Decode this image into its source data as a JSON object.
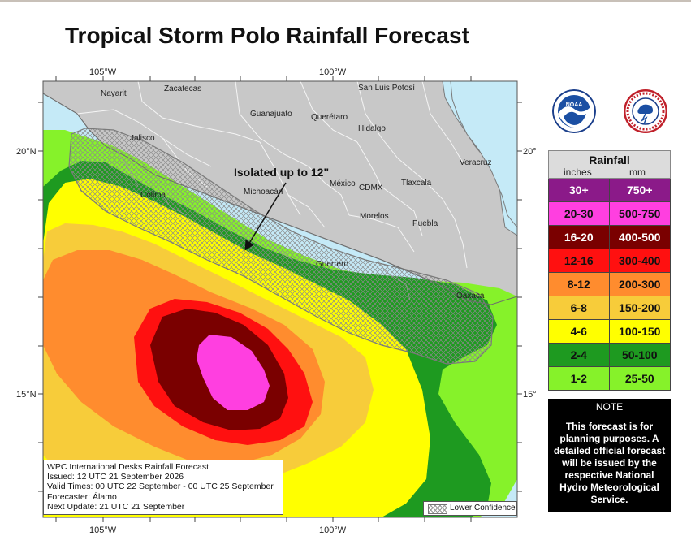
{
  "title": "Tropical Storm Polo Rainfall Forecast",
  "axis": {
    "top": [
      "105°W",
      "100°W"
    ],
    "bottom": [
      "105°W",
      "100°W"
    ],
    "left": [
      "20°N",
      "15°N"
    ],
    "right": [
      "20°N",
      "15°N"
    ]
  },
  "places": {
    "nayarit": "Nayarit",
    "zacatecas": "Zacatecas",
    "san_luis_potosi": "San Luis Potosí",
    "guanajuato": "Guanajuato",
    "queretaro": "Querétaro",
    "hidalgo": "Hidalgo",
    "jalisco": "Jalisco",
    "veracruz": "Veracruz",
    "colima": "Colima",
    "michoacan": "Michoacán",
    "mexico": "México",
    "cdmx": "CDMX",
    "tlaxcala": "Tlaxcala",
    "morelos": "Morelos",
    "puebla": "Puebla",
    "guerrero": "Guerrero",
    "oaxaca": "Oaxaca"
  },
  "annotation": "Isolated up to 12\"",
  "info": {
    "line1": "WPC International Desks Rainfall Forecast",
    "line2": "Issued: 12 UTC 21 September 2026",
    "line3": "Valid Times: 00 UTC 22 September - 00 UTC 25 September",
    "line4": "Forecaster: Álamo",
    "line5": "Next Update: 21 UTC 21 September"
  },
  "lower_confidence": "Lower Confidence",
  "legend": {
    "title": "Rainfall",
    "inches_label": "inches",
    "mm_label": "mm",
    "rows": [
      {
        "inches": "30+",
        "mm": "750+",
        "color": "#8b1a89",
        "text_color": "#ffffff"
      },
      {
        "inches": "20-30",
        "mm": "500-750",
        "color": "#ff3fe0",
        "text_color": "#111111"
      },
      {
        "inches": "16-20",
        "mm": "400-500",
        "color": "#7a0000",
        "text_color": "#ffffff"
      },
      {
        "inches": "12-16",
        "mm": "300-400",
        "color": "#ff1010",
        "text_color": "#111111"
      },
      {
        "inches": "8-12",
        "mm": "200-300",
        "color": "#ff8c2e",
        "text_color": "#111111"
      },
      {
        "inches": "6-8",
        "mm": "150-200",
        "color": "#f7cc3a",
        "text_color": "#111111"
      },
      {
        "inches": "4-6",
        "mm": "100-150",
        "color": "#ffff00",
        "text_color": "#111111"
      },
      {
        "inches": "2-4",
        "mm": "50-100",
        "color": "#1e9a20",
        "text_color": "#111111"
      },
      {
        "inches": "1-2",
        "mm": "25-50",
        "color": "#86f22a",
        "text_color": "#111111"
      }
    ]
  },
  "note": {
    "title": "NOTE",
    "body": "This forecast is for planning purposes. A detailed official forecast will be issued by the respective National Hydro Meteorological Service."
  },
  "colors": {
    "ocean": "#c5eaf7",
    "land": "#c8c8c8",
    "pink": "#ff3fe0",
    "maroon": "#7a0000",
    "red": "#ff1010",
    "orange": "#ff8c2e",
    "gold": "#f7cc3a",
    "yellow": "#ffff00",
    "green": "#1e9a20",
    "lightgreen": "#86f22a"
  },
  "logos": {
    "noaa": "noaa-logo",
    "nws": "national-weather-service-logo"
  }
}
